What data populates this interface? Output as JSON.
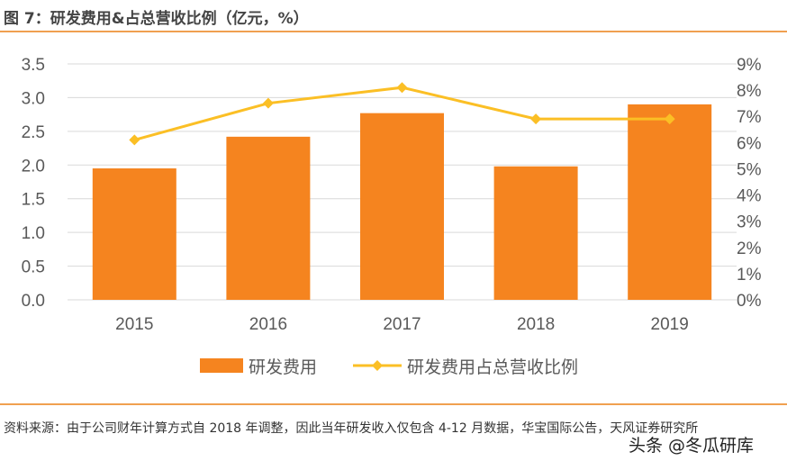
{
  "title": "图 7：研发费用&占总营收比例（亿元，%）",
  "note": "资料来源：由于公司财年计算方式自 2018 年调整，因此当年研发收入仅包含 4-12 月数据，华宝国际公告，天风证券研究所",
  "watermark": "头条 @冬瓜研库",
  "chart_data": {
    "type": "bar+line",
    "categories": [
      "2015",
      "2016",
      "2017",
      "2018",
      "2019"
    ],
    "series": [
      {
        "name": "研发费用",
        "type": "bar",
        "axis": "left",
        "color": "#f5841f",
        "values": [
          1.95,
          2.42,
          2.77,
          1.98,
          2.9
        ]
      },
      {
        "name": "研发费用占总营收比例",
        "type": "line",
        "axis": "right",
        "color": "#fbbf25",
        "values": [
          6.1,
          7.5,
          8.1,
          6.9,
          6.9
        ]
      }
    ],
    "left_axis": {
      "ylim": [
        0,
        3.5
      ],
      "ticks": [
        "0.0",
        "0.5",
        "1.0",
        "1.5",
        "2.0",
        "2.5",
        "3.0",
        "3.5"
      ]
    },
    "right_axis": {
      "ylim": [
        0,
        9
      ],
      "ticks": [
        "0%",
        "1%",
        "2%",
        "3%",
        "4%",
        "5%",
        "6%",
        "7%",
        "8%",
        "9%"
      ]
    },
    "grid": true,
    "legend": "bottom"
  }
}
